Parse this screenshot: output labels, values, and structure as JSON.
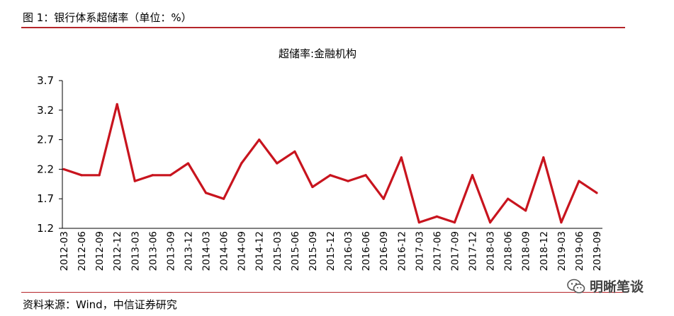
{
  "figure": {
    "heading": "图 1：银行体系超储率（单位：%）",
    "source": "资料来源：Wind，中信证券研究",
    "watermark": "明晰笔谈",
    "watermark_icon": "wechat-icon"
  },
  "colors": {
    "accent": "#c8141e",
    "rule": "#b5252a"
  },
  "chart_data": {
    "type": "line",
    "title": "超储率:金融机构",
    "xlabel": "",
    "ylabel": "",
    "ylim": [
      1.2,
      3.7
    ],
    "yticks": [
      1.2,
      1.7,
      2.2,
      2.7,
      3.2,
      3.7
    ],
    "grid": false,
    "legend": "none",
    "categories": [
      "2012-03",
      "2012-06",
      "2012-09",
      "2012-12",
      "2013-03",
      "2013-06",
      "2013-09",
      "2013-12",
      "2014-03",
      "2014-06",
      "2014-09",
      "2014-12",
      "2015-03",
      "2015-06",
      "2015-09",
      "2015-12",
      "2016-03",
      "2016-06",
      "2016-09",
      "2016-12",
      "2017-03",
      "2017-06",
      "2017-09",
      "2017-12",
      "2018-03",
      "2018-06",
      "2018-09",
      "2018-12",
      "2019-03",
      "2019-06",
      "2019-09"
    ],
    "series": [
      {
        "values": [
          2.2,
          2.1,
          2.1,
          3.3,
          2.0,
          2.1,
          2.1,
          2.3,
          1.8,
          1.7,
          2.3,
          2.7,
          2.3,
          2.5,
          1.9,
          2.1,
          2.0,
          2.1,
          1.7,
          2.4,
          1.3,
          1.4,
          1.3,
          2.1,
          1.3,
          1.7,
          1.5,
          2.4,
          1.3,
          2.0,
          1.8
        ]
      }
    ]
  }
}
